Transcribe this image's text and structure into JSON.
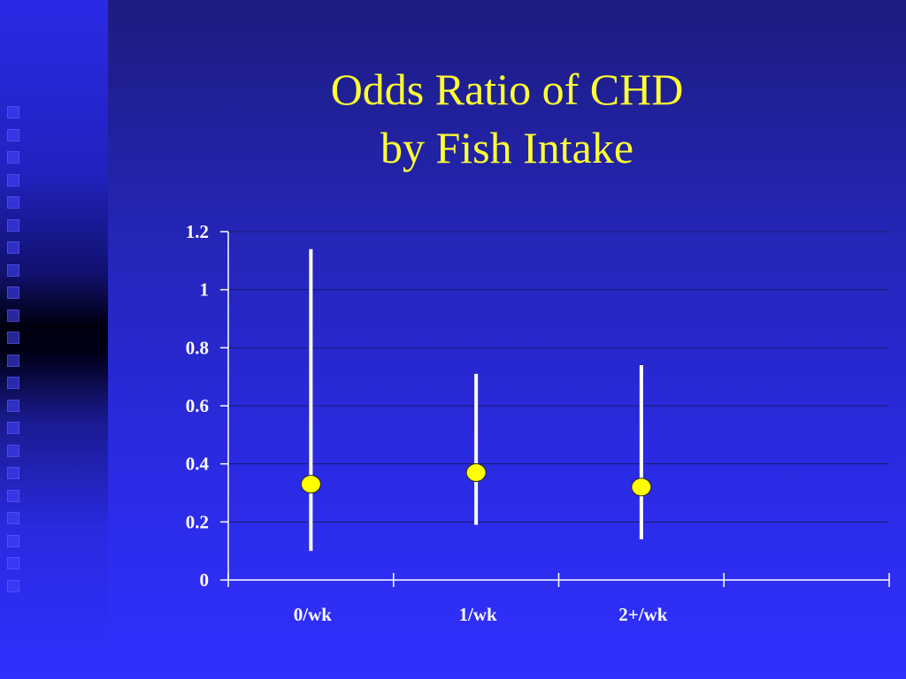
{
  "slide": {
    "title_line1": "Odds Ratio of CHD",
    "title_line2": "by Fish Intake",
    "colors": {
      "title": "#ffff33",
      "marker": "#ffff00",
      "error_bar": "#ffffff",
      "axis": "#ffffff"
    }
  },
  "chart_data": {
    "type": "scatter",
    "title": "",
    "xlabel": "",
    "ylabel": "",
    "categories": [
      "0/wk",
      "1/wk",
      "2+/wk",
      ""
    ],
    "series": [
      {
        "values": [
          0.33,
          0.37,
          0.32
        ],
        "error_low": [
          0.1,
          0.19,
          0.14
        ],
        "error_high": [
          1.14,
          0.71,
          0.74
        ]
      }
    ],
    "ylim": [
      0,
      1.2
    ],
    "yticks": [
      "0",
      "0.2",
      "0.4",
      "0.6",
      "0.8",
      "1",
      "1.2"
    ],
    "grid": true,
    "legend": "none"
  }
}
